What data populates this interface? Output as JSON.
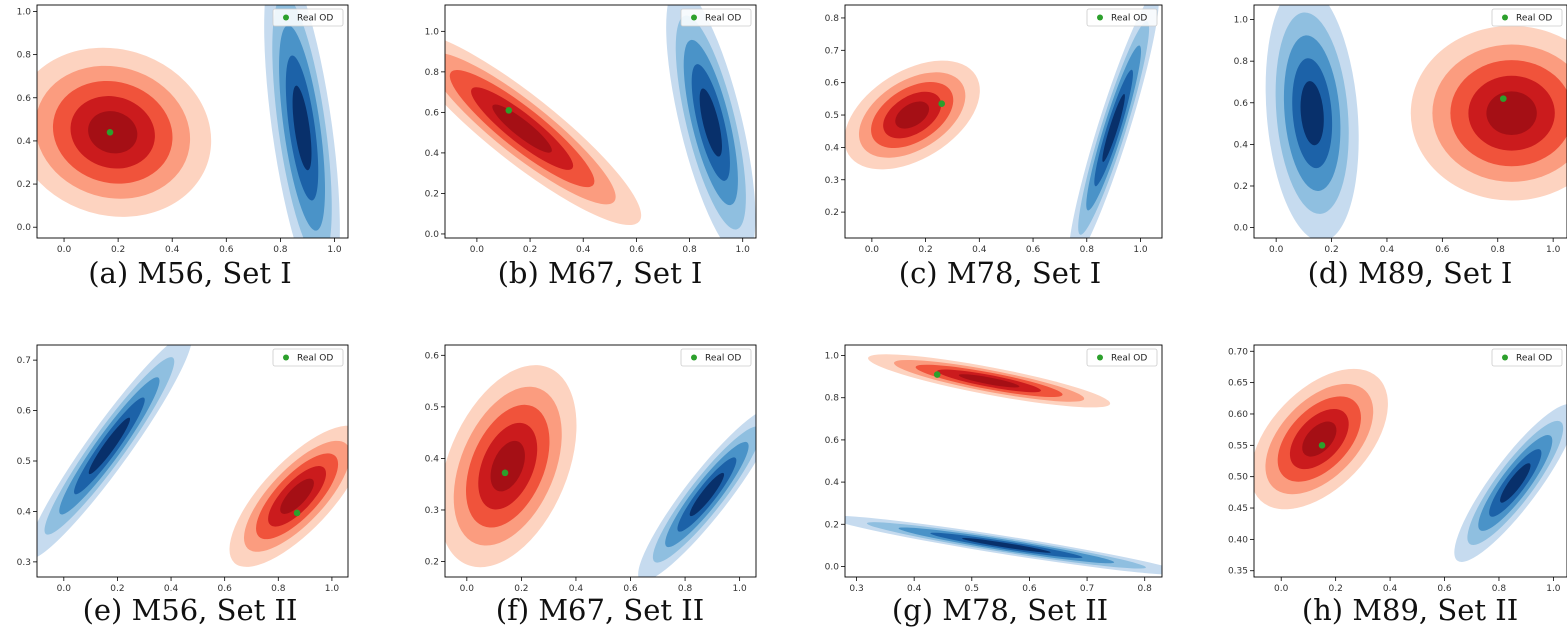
{
  "chart_data": [
    {
      "type": "kde-contour",
      "caption": "(a) M56, Set I",
      "xlim": [
        -0.1,
        1.05
      ],
      "ylim": [
        -0.05,
        1.03
      ],
      "xticks": [
        0.0,
        0.2,
        0.4,
        0.6,
        0.8,
        1.0
      ],
      "yticks": [
        0.0,
        0.2,
        0.4,
        0.6,
        0.8,
        1.0
      ],
      "legend": "Real OD",
      "legend_position": "top-right",
      "real_od": [
        0.17,
        0.44
      ],
      "series": [
        {
          "color": "red",
          "center": [
            0.18,
            0.44
          ],
          "sx": 0.13,
          "sy": 0.14,
          "rho": -0.1
        },
        {
          "color": "blue",
          "center": [
            0.88,
            0.46
          ],
          "sx": 0.05,
          "sy": 0.28,
          "rho": -0.6
        }
      ]
    },
    {
      "type": "kde-contour",
      "caption": "(b) M67, Set I",
      "xlim": [
        -0.12,
        1.05
      ],
      "ylim": [
        -0.02,
        1.13
      ],
      "xticks": [
        0.0,
        0.2,
        0.4,
        0.6,
        0.8,
        1.0
      ],
      "yticks": [
        0.0,
        0.2,
        0.4,
        0.6,
        0.8,
        1.0
      ],
      "legend": "Real OD",
      "legend_position": "top-right",
      "real_od": [
        0.12,
        0.61
      ],
      "series": [
        {
          "color": "red",
          "center": [
            0.17,
            0.52
          ],
          "sx": 0.16,
          "sy": 0.17,
          "rho": -0.9
        },
        {
          "color": "blue",
          "center": [
            0.88,
            0.55
          ],
          "sx": 0.06,
          "sy": 0.24,
          "rho": -0.7
        }
      ]
    },
    {
      "type": "kde-contour",
      "caption": "(c) M78, Set I",
      "xlim": [
        -0.1,
        1.08
      ],
      "ylim": [
        0.12,
        0.84
      ],
      "xticks": [
        0.0,
        0.2,
        0.4,
        0.6,
        0.8,
        1.0
      ],
      "yticks": [
        0.2,
        0.3,
        0.4,
        0.5,
        0.6,
        0.7,
        0.8
      ],
      "legend": "Real OD",
      "legend_position": "top-right",
      "real_od": [
        0.26,
        0.535
      ],
      "series": [
        {
          "color": "red",
          "center": [
            0.15,
            0.5
          ],
          "sx": 0.09,
          "sy": 0.06,
          "rho": 0.45
        },
        {
          "color": "blue",
          "center": [
            0.9,
            0.46
          ],
          "sx": 0.06,
          "sy": 0.15,
          "rho": 0.93
        }
      ]
    },
    {
      "type": "kde-contour",
      "caption": "(d) M89, Set I",
      "xlim": [
        -0.08,
        1.05
      ],
      "ylim": [
        -0.05,
        1.07
      ],
      "xticks": [
        0.0,
        0.2,
        0.4,
        0.6,
        0.8,
        1.0
      ],
      "yticks": [
        0.0,
        0.2,
        0.4,
        0.6,
        0.8,
        1.0
      ],
      "legend": "Real OD",
      "legend_position": "top-right",
      "real_od": [
        0.82,
        0.62
      ],
      "series": [
        {
          "color": "red",
          "center": [
            0.85,
            0.55
          ],
          "sx": 0.13,
          "sy": 0.15,
          "rho": 0.0
        },
        {
          "color": "blue",
          "center": [
            0.13,
            0.55
          ],
          "sx": 0.06,
          "sy": 0.22,
          "rho": -0.2
        }
      ]
    },
    {
      "type": "kde-contour",
      "caption": "(e) M56, Set II",
      "xlim": [
        -0.1,
        1.06
      ],
      "ylim": [
        0.27,
        0.73
      ],
      "xticks": [
        0.0,
        0.2,
        0.4,
        0.6,
        0.8,
        1.0
      ],
      "yticks": [
        0.3,
        0.4,
        0.5,
        0.6,
        0.7
      ],
      "legend": "Real OD",
      "legend_position": "top-right",
      "real_od": [
        0.87,
        0.397
      ],
      "series": [
        {
          "color": "red",
          "center": [
            0.87,
            0.43
          ],
          "sx": 0.09,
          "sy": 0.05,
          "rho": 0.75
        },
        {
          "color": "blue",
          "center": [
            0.17,
            0.53
          ],
          "sx": 0.11,
          "sy": 0.08,
          "rho": 0.95
        }
      ]
    },
    {
      "type": "kde-contour",
      "caption": "(f) M67, Set II",
      "xlim": [
        -0.08,
        1.06
      ],
      "ylim": [
        0.17,
        0.62
      ],
      "xticks": [
        0.0,
        0.2,
        0.4,
        0.6,
        0.8,
        1.0
      ],
      "yticks": [
        0.2,
        0.3,
        0.4,
        0.5,
        0.6
      ],
      "legend": "Real OD",
      "legend_position": "top-right",
      "real_od": [
        0.14,
        0.372
      ],
      "series": [
        {
          "color": "red",
          "center": [
            0.15,
            0.385
          ],
          "sx": 0.09,
          "sy": 0.07,
          "rho": 0.4
        },
        {
          "color": "blue",
          "center": [
            0.88,
            0.33
          ],
          "sx": 0.09,
          "sy": 0.06,
          "rho": 0.92
        }
      ]
    },
    {
      "type": "kde-contour",
      "caption": "(g) M78, Set II",
      "xlim": [
        0.28,
        0.83
      ],
      "ylim": [
        -0.05,
        1.05
      ],
      "xticks": [
        0.3,
        0.4,
        0.5,
        0.6,
        0.7,
        0.8
      ],
      "yticks": [
        0.0,
        0.2,
        0.4,
        0.6,
        0.8,
        1.0
      ],
      "legend": "Real OD",
      "legend_position": "top-right",
      "real_od": [
        0.44,
        0.91
      ],
      "series": [
        {
          "color": "red",
          "center": [
            0.53,
            0.88
          ],
          "sx": 0.075,
          "sy": 0.045,
          "rho": -0.85
        },
        {
          "color": "blue",
          "center": [
            0.56,
            0.1
          ],
          "sx": 0.11,
          "sy": 0.05,
          "rho": -0.95
        }
      ]
    },
    {
      "type": "kde-contour",
      "caption": "(h) M89, Set II",
      "xlim": [
        -0.1,
        1.05
      ],
      "ylim": [
        0.34,
        0.71
      ],
      "xticks": [
        0.0,
        0.2,
        0.4,
        0.6,
        0.8,
        1.0
      ],
      "yticks": [
        0.35,
        0.4,
        0.45,
        0.5,
        0.55,
        0.6,
        0.65,
        0.7
      ],
      "legend": "Real OD",
      "legend_position": "top-right",
      "real_od": [
        0.15,
        0.55
      ],
      "series": [
        {
          "color": "red",
          "center": [
            0.14,
            0.56
          ],
          "sx": 0.09,
          "sy": 0.04,
          "rho": 0.5
        },
        {
          "color": "blue",
          "center": [
            0.86,
            0.49
          ],
          "sx": 0.08,
          "sy": 0.045,
          "rho": 0.88
        }
      ]
    }
  ],
  "colors": {
    "red_levels": [
      "#fdd3c0",
      "#fb9c7f",
      "#f0533b",
      "#cb1b1d",
      "#a50f15"
    ],
    "blue_levels": [
      "#c6dbef",
      "#8fbfe0",
      "#4a93c8",
      "#1c62a8",
      "#08306b"
    ],
    "real_od": "#2ca02c"
  }
}
